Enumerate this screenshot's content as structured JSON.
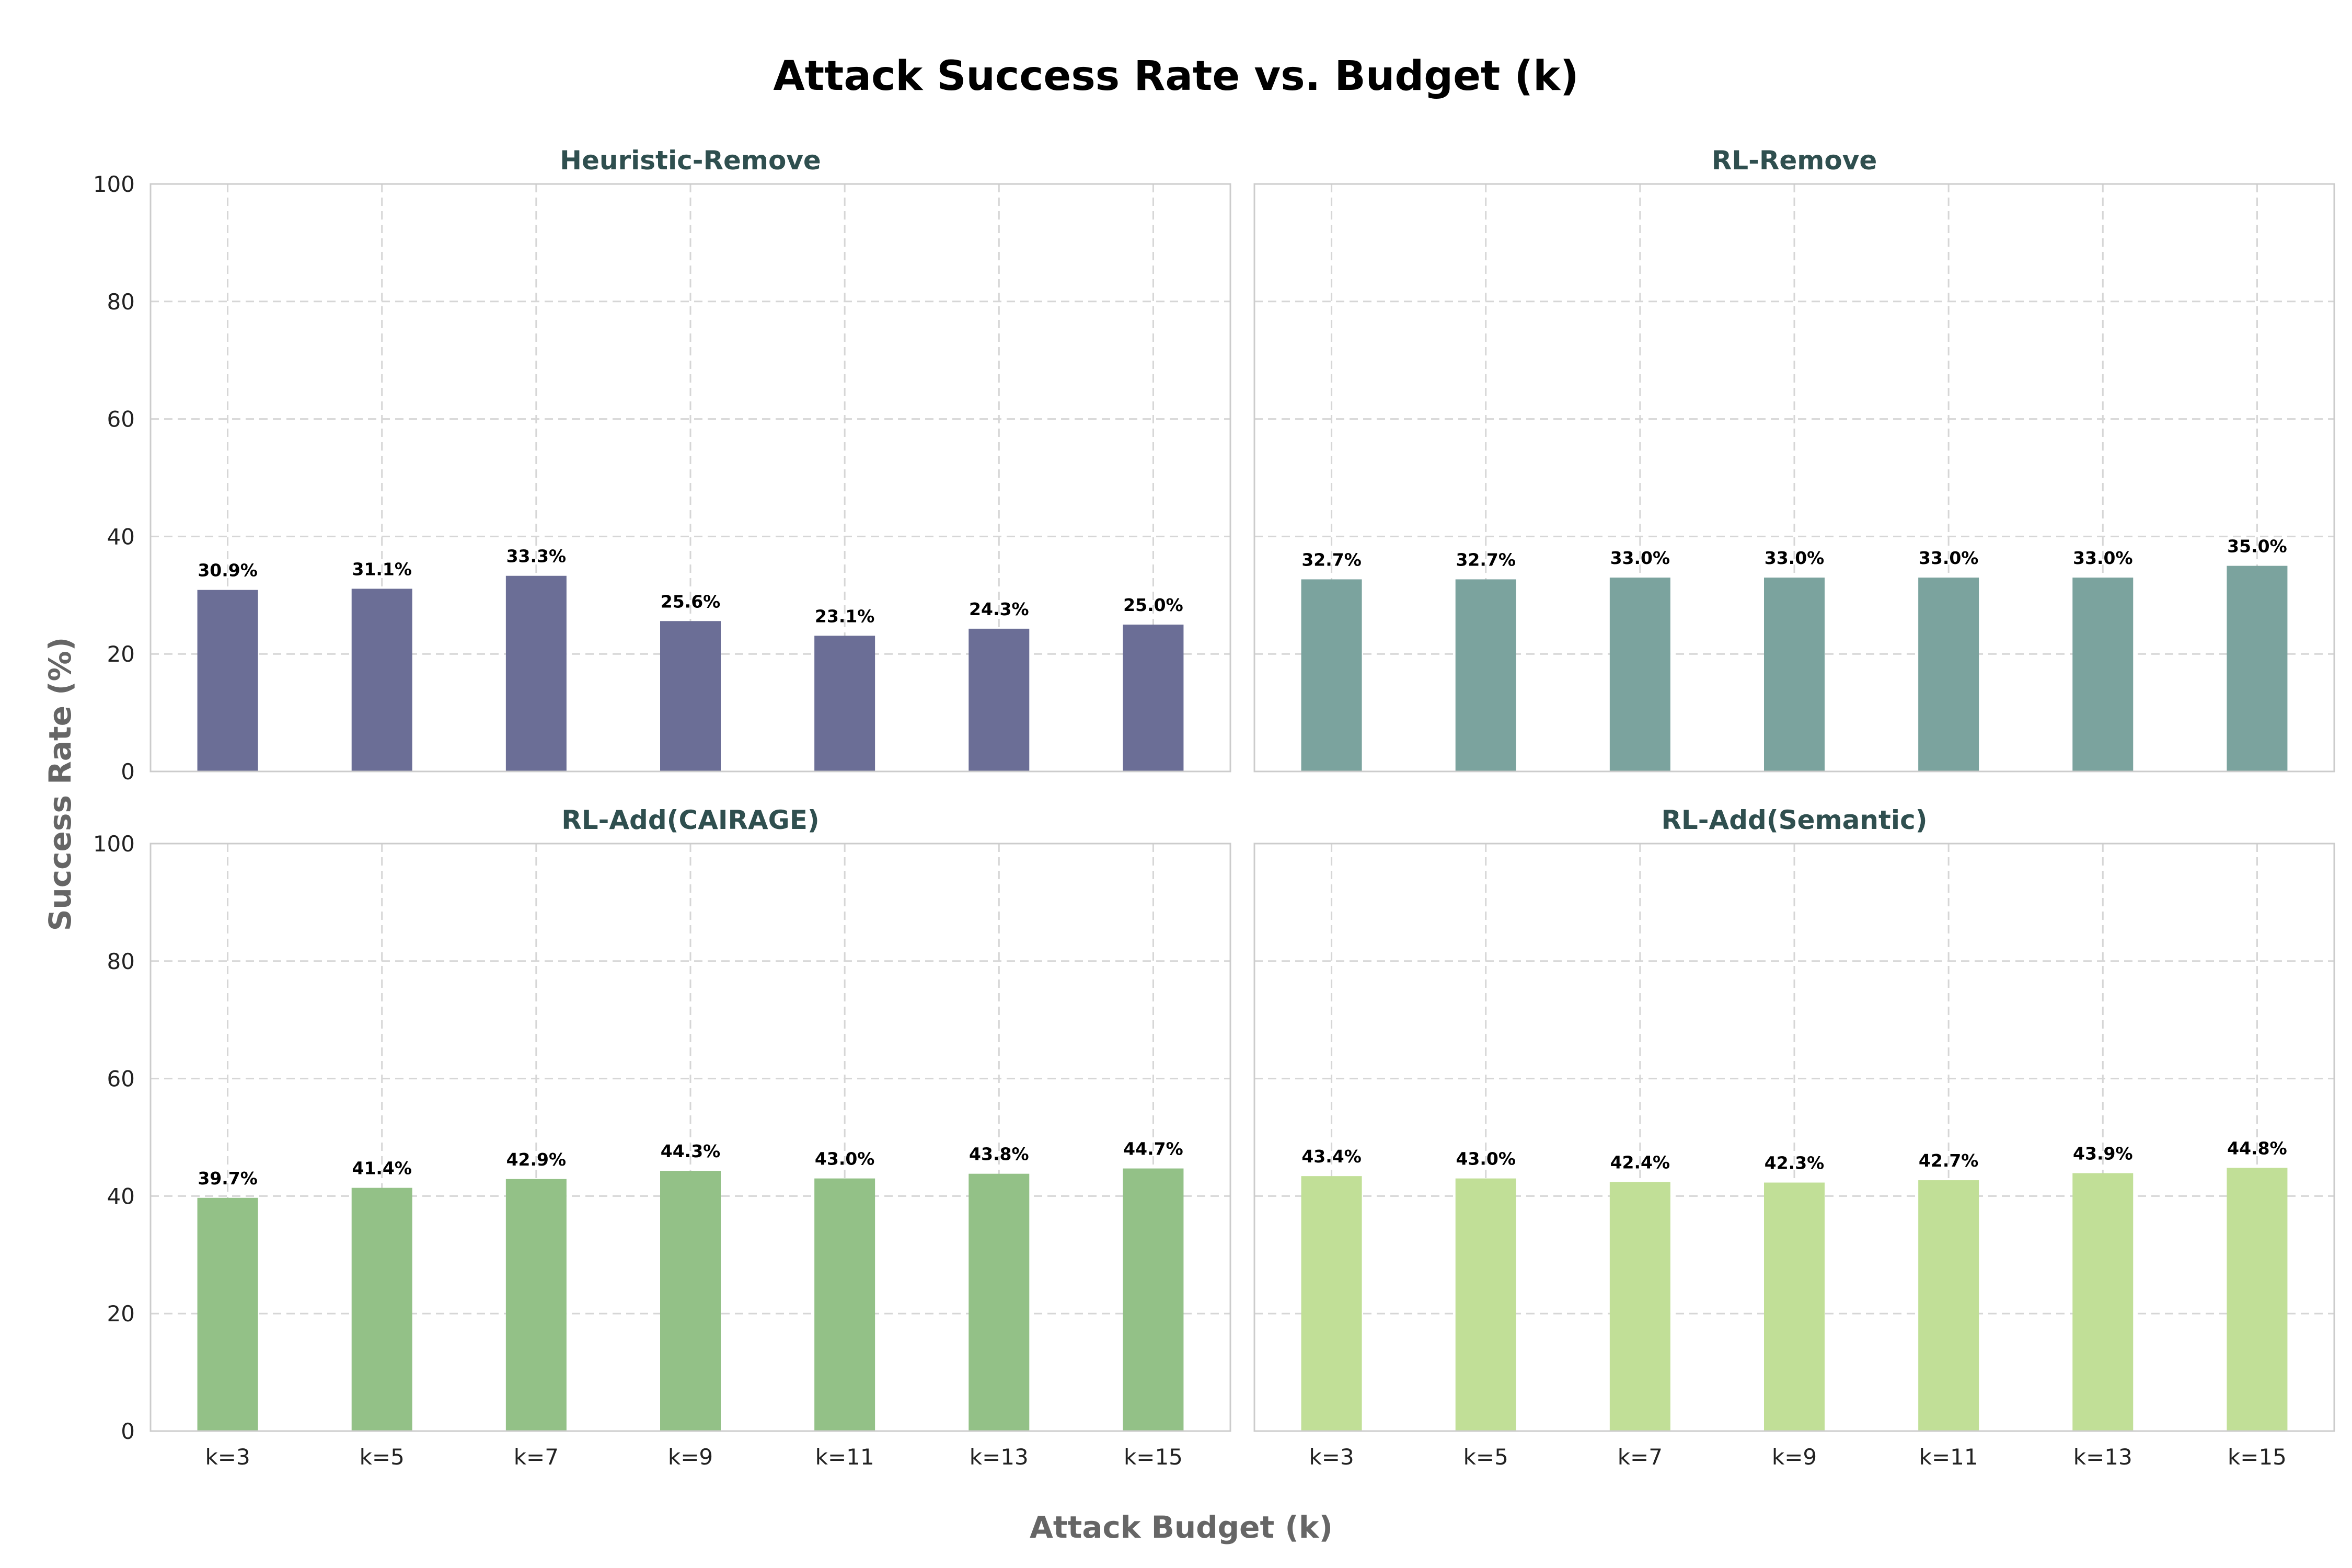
{
  "figure": {
    "title": "Attack Success Rate vs. Budget (k)",
    "xlabel": "Attack Budget (k)",
    "ylabel": "Success Rate (%)"
  },
  "chart_data": [
    {
      "type": "bar",
      "title": "Heuristic-Remove",
      "categories": [
        "k=3",
        "k=5",
        "k=7",
        "k=9",
        "k=11",
        "k=13",
        "k=15"
      ],
      "values": [
        30.9,
        31.1,
        33.3,
        25.6,
        23.1,
        24.3,
        25.0
      ],
      "labels": [
        "30.9%",
        "31.1%",
        "33.3%",
        "25.6%",
        "23.1%",
        "24.3%",
        "25.0%"
      ],
      "color": "#6b6e96",
      "ylim": [
        0,
        100
      ],
      "yticks": [
        0,
        20,
        40,
        60,
        80,
        100
      ],
      "grid": true
    },
    {
      "type": "bar",
      "title": "RL-Remove",
      "categories": [
        "k=3",
        "k=5",
        "k=7",
        "k=9",
        "k=11",
        "k=13",
        "k=15"
      ],
      "values": [
        32.7,
        32.7,
        33.0,
        33.0,
        33.0,
        33.0,
        35.0
      ],
      "labels": [
        "32.7%",
        "32.7%",
        "33.0%",
        "33.0%",
        "33.0%",
        "33.0%",
        "35.0%"
      ],
      "color": "#7ba39e",
      "ylim": [
        0,
        100
      ],
      "yticks": [
        0,
        20,
        40,
        60,
        80,
        100
      ],
      "grid": true
    },
    {
      "type": "bar",
      "title": "RL-Add(CAIRAGE)",
      "categories": [
        "k=3",
        "k=5",
        "k=7",
        "k=9",
        "k=11",
        "k=13",
        "k=15"
      ],
      "values": [
        39.7,
        41.4,
        42.9,
        44.3,
        43.0,
        43.8,
        44.7
      ],
      "labels": [
        "39.7%",
        "41.4%",
        "42.9%",
        "44.3%",
        "43.0%",
        "43.8%",
        "44.7%"
      ],
      "color": "#93c187",
      "ylim": [
        0,
        100
      ],
      "yticks": [
        0,
        20,
        40,
        60,
        80,
        100
      ],
      "grid": true
    },
    {
      "type": "bar",
      "title": "RL-Add(Semantic)",
      "categories": [
        "k=3",
        "k=5",
        "k=7",
        "k=9",
        "k=11",
        "k=13",
        "k=15"
      ],
      "values": [
        43.4,
        43.0,
        42.4,
        42.3,
        42.7,
        43.9,
        44.8
      ],
      "labels": [
        "43.4%",
        "43.0%",
        "42.4%",
        "42.3%",
        "42.7%",
        "43.9%",
        "44.8%"
      ],
      "color": "#c1df97",
      "ylim": [
        0,
        100
      ],
      "yticks": [
        0,
        20,
        40,
        60,
        80,
        100
      ],
      "grid": true
    }
  ]
}
